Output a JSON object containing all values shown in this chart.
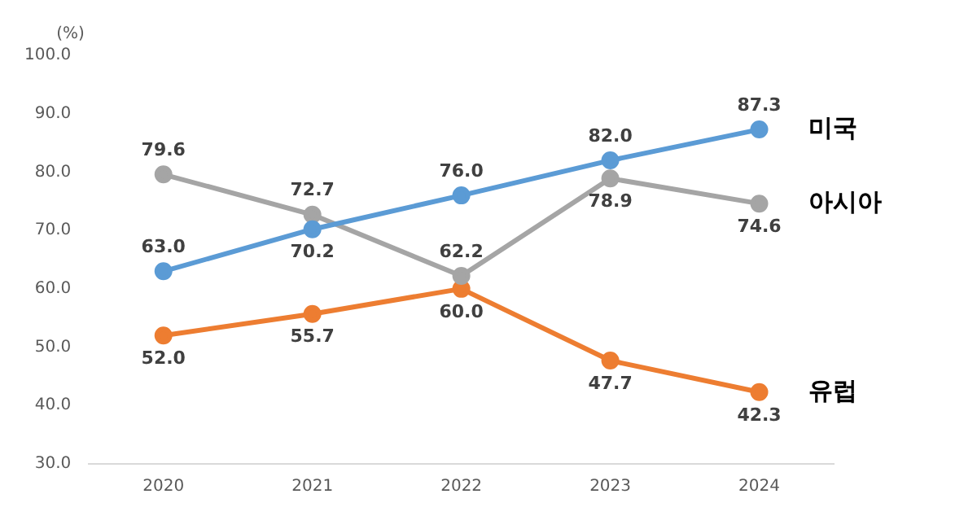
{
  "chart_data": {
    "type": "line",
    "ylabel": "(%)",
    "categories": [
      "2020",
      "2021",
      "2022",
      "2023",
      "2024"
    ],
    "series": [
      {
        "name": "미국",
        "color": "#5b9bd5",
        "values": [
          63.0,
          70.2,
          76.0,
          82.0,
          87.3
        ],
        "value_labels": [
          "63.0",
          "70.2",
          "76.0",
          "82.0",
          "87.3"
        ]
      },
      {
        "name": "아시아",
        "color": "#a5a5a5",
        "values": [
          79.6,
          72.7,
          62.2,
          78.9,
          74.6
        ],
        "value_labels": [
          "79.6",
          "72.7",
          "62.2",
          "78.9",
          "74.6"
        ]
      },
      {
        "name": "유럽",
        "color": "#ed7d31",
        "values": [
          52.0,
          55.7,
          60.0,
          47.7,
          42.3
        ],
        "value_labels": [
          "52.0",
          "55.7",
          "60.0",
          "47.7",
          "42.3"
        ]
      }
    ],
    "ylim": [
      30,
      100
    ],
    "yticks": [
      {
        "value": 30,
        "label": "30.0"
      },
      {
        "value": 40,
        "label": "40.0"
      },
      {
        "value": 50,
        "label": "50.0"
      },
      {
        "value": 60,
        "label": "60.0"
      },
      {
        "value": 70,
        "label": "70.0"
      },
      {
        "value": 80,
        "label": "80.0"
      },
      {
        "value": 90,
        "label": "90.0"
      },
      {
        "value": 100,
        "label": "100.0"
      }
    ],
    "grid": false,
    "legend": false,
    "marker": "circle",
    "line_style": "solid"
  }
}
